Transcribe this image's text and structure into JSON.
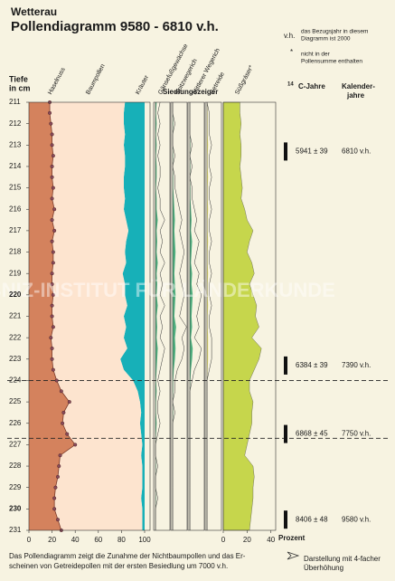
{
  "title": "Wetterau",
  "subtitle": "Pollendiagramm 9580 - 6810 v.h.",
  "notes": {
    "vh": "v.h.",
    "vh_text": [
      "das Bezugsjahr in diesem",
      "Diagramm ist 2000"
    ],
    "star": "*",
    "star_text": [
      "nicht in der",
      "Pollensumme enthalten"
    ]
  },
  "watermark": "© LEIBNIZ-INSTITUT FÜR LÄNDERKUNDE",
  "caption": [
    "Das Pollendiagramm zeigt die Zunahme der Nichtbaumpollen und das Er-",
    "scheinen von Getreidepollen mit der ersten Besiedlung um 7000 v.h."
  ],
  "legend_note": [
    "Darstellung mit 4-facher",
    "Überhöhung"
  ],
  "chart_data": {
    "type": "pollen",
    "y_label": [
      "Tiefe",
      "in cm"
    ],
    "x_label": "Prozent",
    "group_label": "Siedlungszeiger",
    "ylim": [
      211,
      231
    ],
    "yticks": [
      211,
      212,
      213,
      214,
      215,
      216,
      217,
      218,
      219,
      220,
      221,
      222,
      223,
      224,
      225,
      226,
      227,
      228,
      229,
      230,
      231
    ],
    "xlim": [
      0,
      100
    ],
    "xticks": [
      0,
      20,
      40,
      60,
      80,
      100
    ],
    "depths": [
      211,
      211.5,
      212,
      212.5,
      213,
      213.5,
      214,
      214.5,
      215,
      215.5,
      216,
      216.5,
      217,
      217.5,
      218,
      218.5,
      219,
      219.5,
      220,
      220.5,
      221,
      221.5,
      222,
      222.5,
      223,
      223.5,
      224,
      224.5,
      225,
      225.5,
      226,
      226.5,
      227,
      227.5,
      228,
      228.5,
      229,
      229.5,
      230,
      230.5,
      231
    ],
    "series": [
      {
        "name": "Haselnuss",
        "color": "#d4825d",
        "values": [
          18,
          18,
          19,
          20,
          20,
          21,
          20,
          20,
          21,
          20,
          22,
          20,
          22,
          20,
          21,
          21,
          20,
          20,
          21,
          20,
          20,
          21,
          19,
          20,
          20,
          21,
          24,
          28,
          35,
          30,
          29,
          33,
          40,
          27,
          26,
          25,
          23,
          22,
          22,
          25,
          28
        ]
      },
      {
        "name": "Baumpollen",
        "color": "#fde4cf",
        "values": [
          83,
          82,
          82,
          83,
          82,
          83,
          83,
          82,
          82,
          83,
          82,
          84,
          86,
          84,
          83,
          84,
          81,
          83,
          83,
          85,
          82,
          84,
          82,
          85,
          79,
          82,
          90,
          94,
          96,
          97,
          96,
          97,
          98,
          97,
          98,
          98,
          98,
          97,
          98,
          98,
          98
        ]
      },
      {
        "name": "Kräuter",
        "color": "#17b0b8"
      },
      {
        "name": "Gänsefußgewächse",
        "color": "#4fae7e",
        "values": [
          1,
          0.5,
          1,
          0.5,
          1,
          0.5,
          1,
          1,
          0.5,
          1,
          1,
          2,
          1,
          1.5,
          1,
          2,
          1,
          1.5,
          1,
          2,
          1,
          1.5,
          1,
          2,
          1.5,
          1,
          0.5,
          1,
          0.5,
          0.5,
          1,
          0.5,
          0,
          0,
          0.5,
          0,
          0,
          0.5,
          0,
          0,
          0
        ]
      },
      {
        "name": "Spitzwegerich",
        "color": "#4fae7e",
        "values": [
          0,
          0,
          0.5,
          0,
          0,
          0.5,
          0,
          0.5,
          0.5,
          1,
          1.5,
          2,
          1.5,
          2,
          2.5,
          2,
          1.5,
          2,
          2.5,
          2,
          1.5,
          3,
          2,
          2.5,
          2,
          1,
          0.5,
          0.5,
          0,
          0.5,
          0,
          0,
          0,
          0,
          0,
          0,
          0,
          0,
          0,
          0,
          0
        ]
      },
      {
        "name": "Mittlerer Wegerich",
        "color": "#4fae7e",
        "values": [
          0,
          0,
          0,
          0,
          0.5,
          0,
          0.5,
          0,
          0.5,
          0.5,
          1,
          1.5,
          1,
          2,
          1.5,
          1,
          2,
          1.5,
          2.5,
          2,
          1.5,
          2,
          1,
          2.5,
          2,
          1,
          0.5,
          0,
          0,
          0,
          0,
          0,
          0,
          0,
          0,
          0,
          0,
          0,
          0,
          0,
          0
        ]
      },
      {
        "name": "Getreide",
        "color": "#f3ec78",
        "values": [
          0,
          0.5,
          0.5,
          0.5,
          1,
          0.5,
          0.5,
          1,
          0.5,
          0.5,
          1,
          0.5,
          0.5,
          1,
          0.5,
          0.5,
          1,
          0.5,
          0.5,
          1,
          0.5,
          0.5,
          1,
          1,
          1,
          0.5,
          0,
          0,
          0,
          0,
          0,
          0,
          0,
          0,
          0,
          0,
          0,
          0,
          0,
          0,
          0
        ]
      },
      {
        "name": "Süßgräser*",
        "color": "#c6d64c",
        "xlim": [
          0,
          44
        ],
        "xticks": [
          0,
          20,
          40
        ],
        "values": [
          14,
          14,
          15,
          14,
          15,
          15,
          14,
          15,
          16,
          15,
          18,
          20,
          25,
          22,
          20,
          24,
          26,
          22,
          25,
          28,
          27,
          30,
          24,
          32,
          30,
          26,
          22,
          22,
          25,
          24,
          24,
          22,
          20,
          18,
          25,
          26,
          25,
          25,
          24,
          23,
          22
        ]
      }
    ],
    "boundaries": [
      224.0,
      226.7
    ],
    "dates": {
      "c14_sup": "14",
      "c14_header": "C-Jahre",
      "cal_header": [
        "Kalender-",
        "jahre"
      ],
      "items": [
        {
          "depth": 213.3,
          "c14": "5941 ± 39",
          "cal": "6810 v.h."
        },
        {
          "depth": 223.3,
          "c14": "6384 ± 39",
          "cal": "7390 v.h."
        },
        {
          "depth": 226.5,
          "c14": "6868 ± 45",
          "cal": "7750 v.h."
        },
        {
          "depth": 230.5,
          "c14": "8406 ± 48",
          "cal": "9580 v.h."
        }
      ]
    }
  }
}
